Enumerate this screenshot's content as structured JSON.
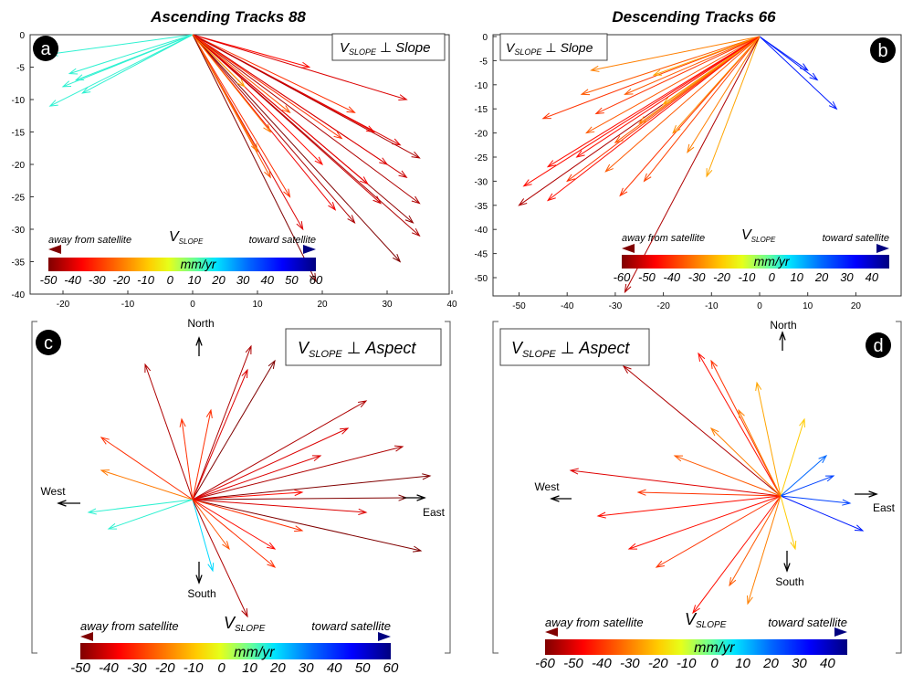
{
  "titles": {
    "a": "Ascending Tracks 88",
    "b": "Descending Tracks 66"
  },
  "badges": {
    "a": "a",
    "b": "b",
    "c": "c",
    "d": "d"
  },
  "boxes": {
    "v": "V",
    "sub": "SLOPE",
    "perp": "⊥",
    "slope": "Slope",
    "aspect": "Aspect"
  },
  "legend": {
    "away": "away from satellite",
    "toward": "toward satellite",
    "v": "V",
    "sub": "SLOPE",
    "units": "mm/yr"
  },
  "compass": {
    "north": "North",
    "south": "South",
    "east": "East",
    "west": "West"
  },
  "chart_data": [
    {
      "panel": "a",
      "type": "quiver",
      "xlim": [
        -24,
        40
      ],
      "ylim": [
        -40,
        0
      ],
      "xticks": [
        -20,
        -10,
        0,
        10,
        20,
        30,
        40
      ],
      "yticks": [
        0,
        -5,
        -10,
        -15,
        -20,
        -25,
        -30,
        -35,
        -40
      ],
      "colorbar": {
        "range": [
          -50,
          60
        ],
        "ticks": [
          -50,
          -40,
          -30,
          -20,
          -10,
          0,
          10,
          20,
          30,
          40,
          50,
          60
        ]
      },
      "vectors": [
        [
          -22,
          -3,
          15
        ],
        [
          -20,
          -8,
          15
        ],
        [
          -22,
          -11,
          15
        ],
        [
          -18,
          -7,
          15
        ],
        [
          -17,
          -9,
          15
        ],
        [
          -19,
          -6,
          15
        ],
        [
          18,
          -5,
          -35
        ],
        [
          33,
          -10,
          -40
        ],
        [
          25,
          -12,
          -30
        ],
        [
          28,
          -15,
          -35
        ],
        [
          32,
          -17,
          -40
        ],
        [
          35,
          -19,
          -45
        ],
        [
          33,
          -22,
          -42
        ],
        [
          35,
          -26,
          -45
        ],
        [
          34,
          -29,
          -48
        ],
        [
          35,
          -31,
          -45
        ],
        [
          32,
          -35,
          -50
        ],
        [
          25,
          -29,
          -45
        ],
        [
          22,
          -27,
          -38
        ],
        [
          17,
          -30,
          -40
        ],
        [
          15,
          -25,
          -30
        ],
        [
          12,
          -22,
          -25
        ],
        [
          10,
          -18,
          -20
        ],
        [
          20,
          -20,
          -35
        ],
        [
          27,
          -23,
          -38
        ],
        [
          30,
          -20,
          -40
        ],
        [
          15,
          -12,
          -25
        ],
        [
          8,
          -8,
          -15
        ],
        [
          23,
          -16,
          -30
        ],
        [
          19,
          -38,
          -50
        ],
        [
          29,
          -26,
          -42
        ],
        [
          12,
          -15,
          -20
        ]
      ]
    },
    {
      "panel": "b",
      "type": "quiver",
      "xlim": [
        -55,
        29
      ],
      "ylim": [
        -53.5,
        0
      ],
      "xticks": [
        -50,
        -40,
        -30,
        -20,
        -10,
        0,
        10,
        20
      ],
      "yticks": [
        0,
        -5,
        -10,
        -15,
        -20,
        -25,
        -30,
        -35,
        -40,
        -45,
        -50
      ],
      "colorbar": {
        "range": [
          -60,
          47
        ],
        "ticks": [
          -60,
          -50,
          -40,
          -30,
          -20,
          -10,
          0,
          10,
          20,
          30,
          40
        ]
      },
      "vectors": [
        [
          12,
          -9,
          30
        ],
        [
          16,
          -15,
          30
        ],
        [
          10,
          -7,
          30
        ],
        [
          -35,
          -7,
          -30
        ],
        [
          -37,
          -12,
          -35
        ],
        [
          -45,
          -17,
          -40
        ],
        [
          -36,
          -20,
          -35
        ],
        [
          -44,
          -27,
          -45
        ],
        [
          -49,
          -31,
          -45
        ],
        [
          -50,
          -35,
          -55
        ],
        [
          -44,
          -34,
          -45
        ],
        [
          -40,
          -30,
          -40
        ],
        [
          -32,
          -28,
          -35
        ],
        [
          -30,
          -22,
          -35
        ],
        [
          -25,
          -18,
          -30
        ],
        [
          -20,
          -14,
          -25
        ],
        [
          -11,
          -29,
          -25
        ],
        [
          -15,
          -24,
          -30
        ],
        [
          -28,
          -53,
          -55
        ],
        [
          -22,
          -8,
          -25
        ],
        [
          -28,
          -12,
          -35
        ],
        [
          -34,
          -16,
          -40
        ],
        [
          -38,
          -25,
          -45
        ],
        [
          -29,
          -33,
          -40
        ],
        [
          -24,
          -30,
          -38
        ],
        [
          -18,
          -20,
          -28
        ]
      ]
    },
    {
      "panel": "c",
      "type": "quiver-polar",
      "colorbar": {
        "range": [
          -50,
          60
        ],
        "ticks": [
          -50,
          -40,
          -30,
          -20,
          -10,
          0,
          10,
          20,
          30,
          40,
          50,
          60
        ]
      },
      "vectors": [
        [
          32,
          84,
          -45
        ],
        [
          45,
          76,
          -50
        ],
        [
          30,
          71,
          -40
        ],
        [
          -26,
          74,
          -45
        ],
        [
          -50,
          34,
          -30
        ],
        [
          -50,
          16,
          -20
        ],
        [
          -57,
          -7,
          15
        ],
        [
          -46,
          -16,
          15
        ],
        [
          11,
          -39,
          20
        ],
        [
          30,
          -64,
          -45
        ],
        [
          125,
          -28,
          -50
        ],
        [
          130,
          13,
          -50
        ],
        [
          117,
          1,
          -50
        ],
        [
          115,
          29,
          -45
        ],
        [
          95,
          54,
          -45
        ],
        [
          85,
          39,
          -40
        ],
        [
          60,
          -17,
          -30
        ],
        [
          45,
          -27,
          -35
        ],
        [
          20,
          -27,
          -25
        ],
        [
          60,
          4,
          -35
        ],
        [
          95,
          -7,
          -40
        ],
        [
          -6,
          44,
          -30
        ],
        [
          10,
          49,
          -30
        ],
        [
          70,
          24,
          -40
        ],
        [
          45,
          -37,
          -30
        ]
      ]
    },
    {
      "panel": "d",
      "type": "quiver-polar",
      "colorbar": {
        "range": [
          -60,
          47
        ],
        "ticks": [
          -60,
          -50,
          -40,
          -30,
          -20,
          -10,
          0,
          10,
          20,
          30,
          40
        ]
      },
      "vectors": [
        [
          -86,
          71,
          -55
        ],
        [
          -45,
          78,
          -45
        ],
        [
          -38,
          74,
          -40
        ],
        [
          -13,
          62,
          -25
        ],
        [
          13,
          42,
          -20
        ],
        [
          -115,
          14,
          -50
        ],
        [
          -100,
          -11,
          -45
        ],
        [
          -83,
          -29,
          -45
        ],
        [
          -48,
          -64,
          -45
        ],
        [
          -18,
          -59,
          -30
        ],
        [
          -28,
          -49,
          -35
        ],
        [
          -68,
          -39,
          -40
        ],
        [
          -58,
          22,
          -35
        ],
        [
          -38,
          37,
          -30
        ],
        [
          29,
          11,
          25
        ],
        [
          45,
          -19,
          30
        ],
        [
          38,
          -4,
          25
        ],
        [
          25,
          22,
          20
        ],
        [
          8,
          -29,
          -20
        ],
        [
          -78,
          2,
          -40
        ],
        [
          -23,
          47,
          -30
        ]
      ]
    }
  ]
}
